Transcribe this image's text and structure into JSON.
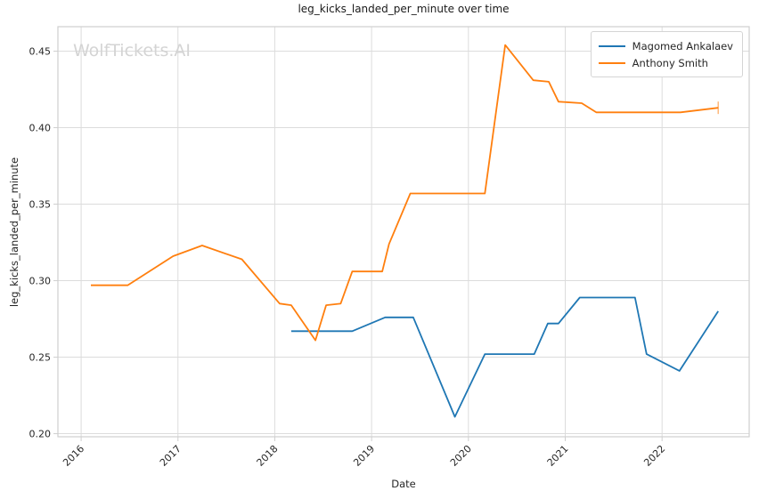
{
  "figure": {
    "title": "leg_kicks_landed_per_minute over time",
    "watermark": "WolfTickets.AI",
    "xlabel": "Date",
    "ylabel": "leg_kicks_landed_per_minute"
  },
  "chart_data": {
    "type": "line",
    "title": "leg_kicks_landed_per_minute over time",
    "xlabel": "Date",
    "ylabel": "leg_kicks_landed_per_minute",
    "xlim": [
      2015.76,
      2022.9
    ],
    "ylim": [
      0.198,
      0.466
    ],
    "x_ticks": [
      2016,
      2017,
      2018,
      2019,
      2020,
      2021,
      2022
    ],
    "y_ticks": [
      0.2,
      0.25,
      0.3,
      0.35,
      0.4,
      0.45
    ],
    "grid": true,
    "grid_color": "#dcdcdc",
    "spine_color": "#cfcfcf",
    "legend_position": "upper right",
    "series": [
      {
        "name": "Magomed Ankalaev",
        "color": "#1f77b4",
        "end_tick": false,
        "points": [
          [
            2018.17,
            0.267
          ],
          [
            2018.8,
            0.267
          ],
          [
            2019.14,
            0.276
          ],
          [
            2019.43,
            0.276
          ],
          [
            2019.86,
            0.211
          ],
          [
            2020.17,
            0.252
          ],
          [
            2020.68,
            0.252
          ],
          [
            2020.82,
            0.272
          ],
          [
            2020.93,
            0.272
          ],
          [
            2021.15,
            0.289
          ],
          [
            2021.72,
            0.289
          ],
          [
            2021.84,
            0.252
          ],
          [
            2022.18,
            0.241
          ],
          [
            2022.58,
            0.28
          ]
        ]
      },
      {
        "name": "Anthony Smith",
        "color": "#ff7f0e",
        "end_tick": true,
        "points": [
          [
            2016.1,
            0.297
          ],
          [
            2016.48,
            0.297
          ],
          [
            2016.95,
            0.316
          ],
          [
            2017.25,
            0.323
          ],
          [
            2017.66,
            0.314
          ],
          [
            2018.05,
            0.285
          ],
          [
            2018.17,
            0.284
          ],
          [
            2018.42,
            0.261
          ],
          [
            2018.53,
            0.284
          ],
          [
            2018.68,
            0.285
          ],
          [
            2018.8,
            0.306
          ],
          [
            2019.11,
            0.306
          ],
          [
            2019.18,
            0.324
          ],
          [
            2019.4,
            0.357
          ],
          [
            2020.17,
            0.357
          ],
          [
            2020.38,
            0.454
          ],
          [
            2020.67,
            0.431
          ],
          [
            2020.83,
            0.43
          ],
          [
            2020.93,
            0.417
          ],
          [
            2021.17,
            0.416
          ],
          [
            2021.32,
            0.41
          ],
          [
            2022.19,
            0.41
          ],
          [
            2022.58,
            0.413
          ]
        ]
      }
    ]
  }
}
